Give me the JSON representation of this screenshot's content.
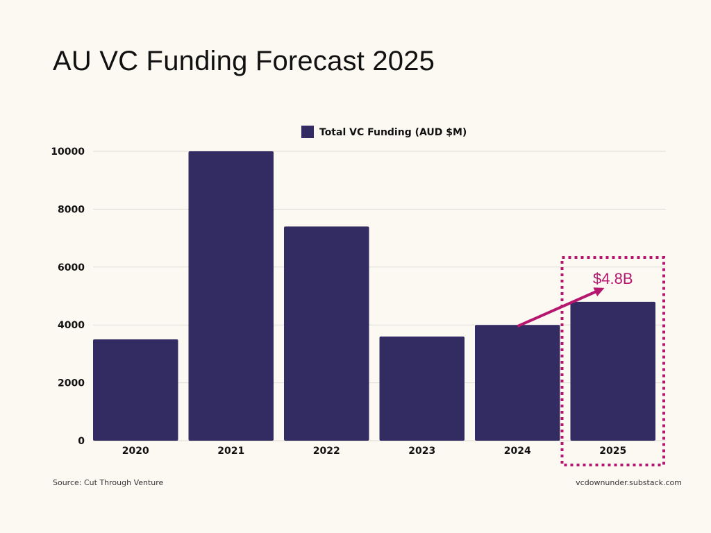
{
  "title": "AU VC Funding Forecast 2025",
  "chart_data": {
    "type": "bar",
    "categories": [
      "2020",
      "2021",
      "2022",
      "2023",
      "2024",
      "2025"
    ],
    "series": [
      {
        "name": "Total VC Funding (AUD $M)",
        "values": [
          3500,
          10000,
          7400,
          3600,
          4000,
          4800
        ]
      }
    ],
    "ylim": [
      0,
      10000
    ],
    "yticks": [
      0,
      2000,
      4000,
      6000,
      8000,
      10000
    ],
    "grid": true,
    "legend": "top-center",
    "bar_color": "#332c63",
    "annotation": {
      "text": "$4.8B",
      "highlight_category": "2025",
      "arrow_from_category": "2024",
      "color": "#b5176e"
    }
  },
  "footer": {
    "source": "Source: Cut Through Venture",
    "site": "vcdownunder.substack.com"
  }
}
